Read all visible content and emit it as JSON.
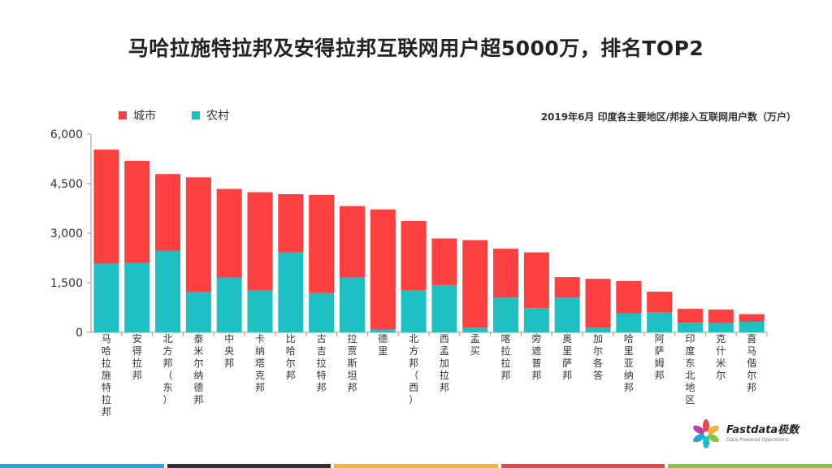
{
  "title": "马哈拉施特拉邦及安得拉邦互联网用户超5000万，排名TOP2",
  "subtitle": "2019年6月 印度各主要地区/邦接入互联网用户数（万户）",
  "legend": {
    "urban": "城市",
    "rural": "农村"
  },
  "colors": {
    "urban": "#FC4040",
    "rural": "#1DBFC3",
    "axis": "#999999",
    "text": "#333333"
  },
  "logo": {
    "name": "Fastdata极数",
    "tagline": "Data Powered Operations"
  },
  "footer_colors": [
    "#1BA9E0",
    "#2F3136",
    "#F2B33D",
    "#E8474A",
    "#86C53F"
  ],
  "chart_data": {
    "type": "bar",
    "stacked": true,
    "title": "马哈拉施特拉邦及安得拉邦互联网用户超5000万，排名TOP2",
    "subtitle": "2019年6月 印度各主要地区/邦接入互联网用户数（万户）",
    "categories": [
      "马哈拉施特拉邦",
      "安得拉邦",
      "北方邦（东）",
      "泰米尔纳德邦",
      "中央邦",
      "卡纳塔克邦",
      "比哈尔邦",
      "古吉拉特邦",
      "拉贾斯坦邦",
      "德里",
      "北方邦（西）",
      "西孟加拉邦",
      "孟买",
      "喀拉拉邦",
      "旁遮普邦",
      "奥里萨邦",
      "加尔各答",
      "哈里亚纳邦",
      "阿萨姆邦",
      "印度东北地区",
      "克什米尔",
      "喜马偕尔邦"
    ],
    "series": [
      {
        "name": "农村",
        "values": [
          2080,
          2100,
          2470,
          1220,
          1650,
          1260,
          2420,
          1190,
          1650,
          80,
          1270,
          1430,
          140,
          1050,
          730,
          1050,
          140,
          580,
          600,
          290,
          280,
          320
        ]
      },
      {
        "name": "城市",
        "values": [
          3450,
          3090,
          2320,
          3470,
          2690,
          2980,
          1760,
          2970,
          2170,
          3640,
          2100,
          1410,
          2650,
          1480,
          1690,
          620,
          1480,
          970,
          630,
          420,
          410,
          230
        ]
      }
    ],
    "legend": [
      "城市",
      "农村"
    ],
    "legend_position": "top-left",
    "ylim": [
      0,
      6000
    ],
    "yticks": [
      "0",
      "1,500",
      "3,000",
      "4,500",
      "6,000"
    ],
    "ytick_values": [
      0,
      1500,
      3000,
      4500,
      6000
    ],
    "grid": false
  }
}
